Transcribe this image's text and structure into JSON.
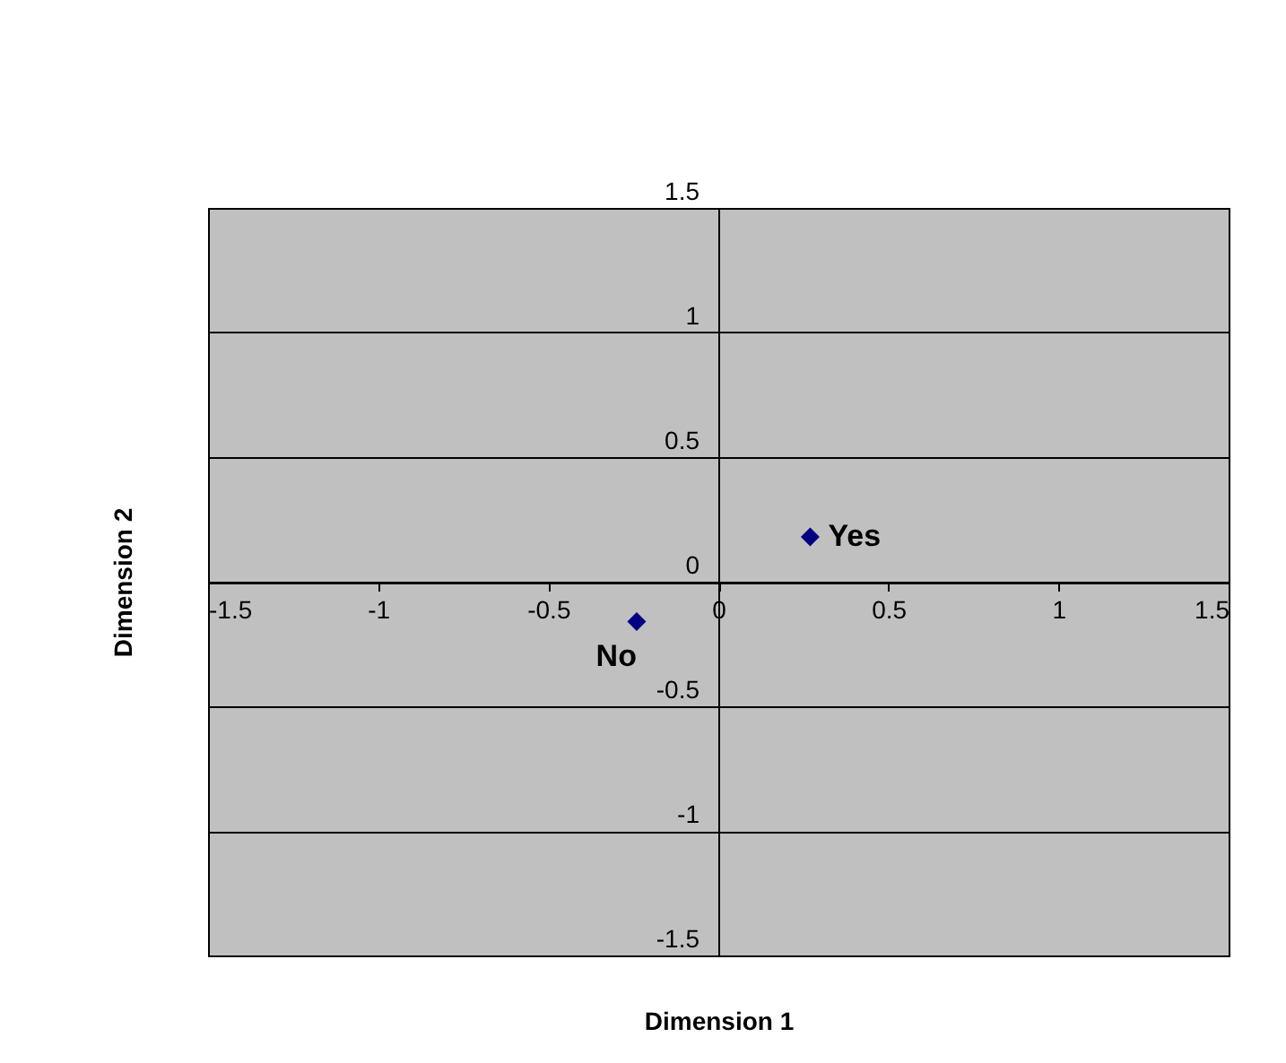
{
  "chart_data": {
    "type": "scatter",
    "xlabel": "Dimension 1",
    "ylabel": "Dimension 2",
    "x": [
      0.27,
      -0.24
    ],
    "series": [
      {
        "color": "#000080",
        "values": [
          0.18,
          -0.16
        ]
      }
    ],
    "annotations": [
      {
        "text": "Yes",
        "x": 0.27,
        "y": 0.18
      },
      {
        "text": "No",
        "x": -0.24,
        "y": -0.16
      }
    ],
    "xlim": [
      -1.5,
      1.5
    ],
    "ylim": [
      -1.5,
      1.5
    ],
    "xticks": [
      -1.5,
      -1,
      -0.5,
      0,
      0.5,
      1,
      1.5
    ],
    "yticks": [
      -1.5,
      -1,
      -0.5,
      0,
      0.5,
      1,
      1.5
    ],
    "grid": "y",
    "marker": "diamond"
  }
}
